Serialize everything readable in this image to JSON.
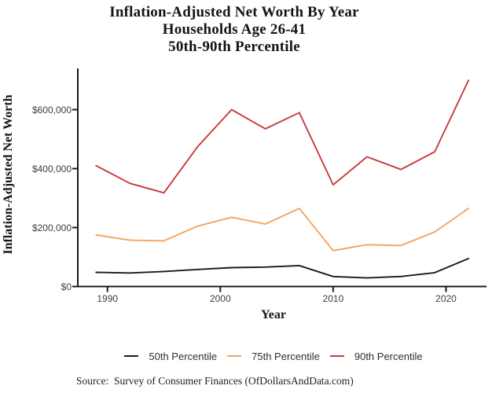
{
  "title": {
    "line1": "Inflation-Adjusted Net Worth By Year",
    "line2": "Households Age 26-41",
    "line3": "50th-90th Percentile"
  },
  "chart_data": {
    "type": "line",
    "x": [
      1989,
      1992,
      1995,
      1998,
      2001,
      2004,
      2007,
      2010,
      2013,
      2016,
      2019,
      2022
    ],
    "series": [
      {
        "name": "50th Percentile",
        "color": "#1b1b1b",
        "values": [
          48000,
          46000,
          51000,
          58000,
          64000,
          66000,
          71000,
          34000,
          29000,
          34000,
          47000,
          95000
        ]
      },
      {
        "name": "75th Percentile",
        "color": "#f3a45f",
        "values": [
          175000,
          157000,
          155000,
          205000,
          235000,
          212000,
          265000,
          122000,
          142000,
          139000,
          185000,
          265000
        ]
      },
      {
        "name": "90th Percentile",
        "color": "#cb3a3c",
        "values": [
          410000,
          350000,
          318000,
          475000,
          600000,
          535000,
          590000,
          345000,
          440000,
          397000,
          457000,
          700000
        ]
      }
    ],
    "xlabel": "Year",
    "ylabel": "Inflation-Adjusted Net Worth",
    "x_ticks": [
      1990,
      2000,
      2010,
      2020
    ],
    "x_tick_labels": [
      "1990",
      "2000",
      "2010",
      "2020"
    ],
    "y_ticks": [
      0,
      200000,
      400000,
      600000
    ],
    "y_tick_labels": [
      "$0",
      "$200,000",
      "$400,000",
      "$600,000"
    ],
    "ylim": [
      0,
      740000
    ],
    "grid": false,
    "legend_position": "bottom"
  },
  "source": "Source:  Survey of Consumer Finances (OfDollarsAndData.com)"
}
